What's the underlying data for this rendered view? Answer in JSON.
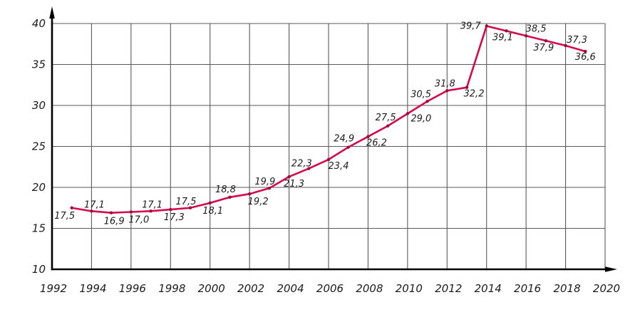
{
  "chart_data": {
    "type": "line",
    "title": "",
    "x": [
      1993,
      1994,
      1995,
      1996,
      1997,
      1998,
      1999,
      2000,
      2001,
      2002,
      2003,
      2004,
      2005,
      2006,
      2007,
      2008,
      2009,
      2010,
      2011,
      2012,
      2013,
      2014,
      2015,
      2016,
      2017,
      2018,
      2019
    ],
    "values": [
      17.5,
      17.1,
      16.9,
      17.0,
      17.1,
      17.3,
      17.5,
      18.1,
      18.8,
      19.2,
      19.9,
      21.3,
      22.3,
      23.4,
      24.9,
      26.2,
      27.5,
      29.0,
      30.5,
      31.8,
      32.2,
      39.7,
      39.1,
      38.5,
      37.9,
      37.3,
      36.6
    ],
    "point_labels": [
      "17,5",
      "17,1",
      "16,9",
      "17,0",
      "17,1",
      "17,3",
      "17,5",
      "18,1",
      "18,8",
      "19,2",
      "19,9",
      "21,3",
      "22,3",
      "23,4",
      "24,9",
      "26,2",
      "27,5",
      "29,0",
      "30,5",
      "31,8",
      "32,2",
      "39,7",
      "39,1",
      "38,5",
      "37,9",
      "37,3",
      "36,6"
    ],
    "label_placements": [
      [
        -10,
        15
      ],
      [
        4,
        -5
      ],
      [
        4,
        16
      ],
      [
        11,
        15
      ],
      [
        2,
        -5
      ],
      [
        5,
        15
      ],
      [
        -6,
        -5
      ],
      [
        4,
        15
      ],
      [
        -6,
        -7
      ],
      [
        12,
        15
      ],
      [
        -6,
        -5
      ],
      [
        7,
        14
      ],
      [
        -10,
        -3
      ],
      [
        14,
        13
      ],
      [
        -6,
        -8
      ],
      [
        12,
        13
      ],
      [
        -3,
        -8
      ],
      [
        19,
        11
      ],
      [
        -9,
        -6
      ],
      [
        -3,
        -6
      ],
      [
        10,
        13
      ],
      [
        -8,
        4,
        "end"
      ],
      [
        -5,
        13
      ],
      [
        14,
        -6
      ],
      [
        -3,
        14
      ],
      [
        16,
        -4
      ],
      [
        0,
        12
      ]
    ],
    "x_ticks": [
      1992,
      1994,
      1996,
      1998,
      2000,
      2002,
      2004,
      2006,
      2008,
      2010,
      2012,
      2014,
      2016,
      2018,
      2020
    ],
    "y_ticks": [
      10,
      15,
      20,
      25,
      30,
      35,
      40
    ],
    "xlim": [
      1992,
      2020
    ],
    "ylim": [
      10,
      40
    ],
    "grid": true,
    "legend_position": "none",
    "decimal_separator": ",",
    "colors": {
      "line": "#d5094d",
      "marker": "#9c0a3e",
      "grid": "#5a5a5a",
      "axis": "#000000",
      "text": "#1c1c1c",
      "background": "#ffffff"
    }
  }
}
